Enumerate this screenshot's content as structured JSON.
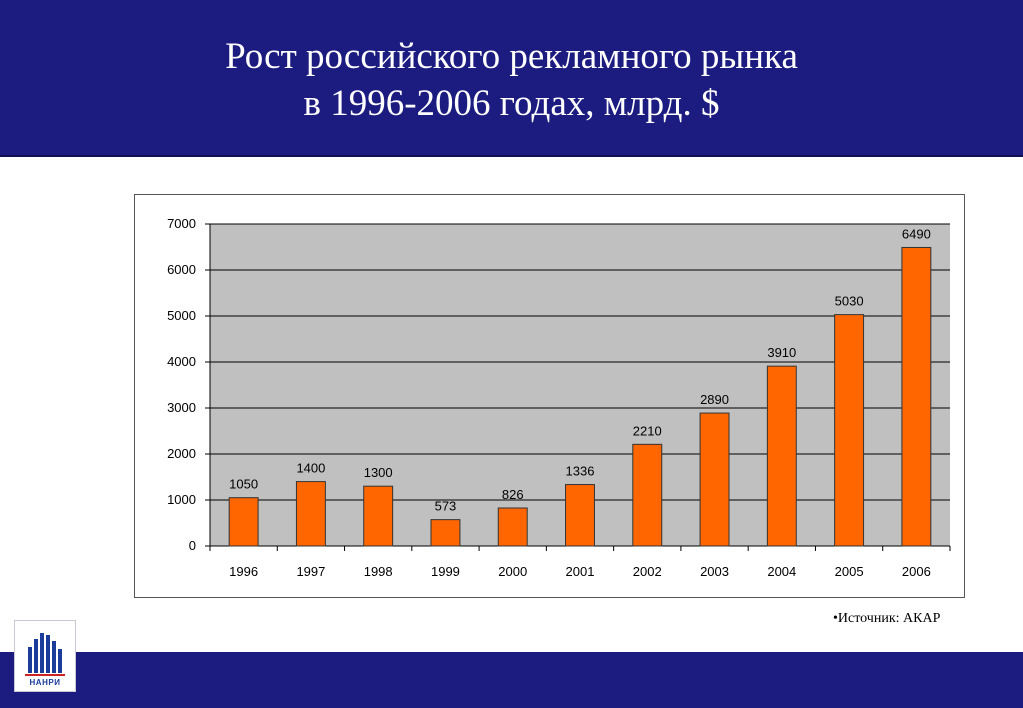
{
  "slide": {
    "title_line1": "Рост российского рекламного рынка",
    "title_line2": "в 1996-2006 годах, млрд. $",
    "source": "•Источник: АКАР",
    "logo_text": "НАНРИ"
  },
  "chart_data": {
    "type": "bar",
    "title": "",
    "xlabel": "",
    "ylabel": "",
    "categories": [
      "1996",
      "1997",
      "1998",
      "1999",
      "2000",
      "2001",
      "2002",
      "2003",
      "2004",
      "2005",
      "2006"
    ],
    "values": [
      1050,
      1400,
      1300,
      573,
      826,
      1336,
      2210,
      2890,
      3910,
      5030,
      6490
    ],
    "data_labels": [
      "1050",
      "1400",
      "1300",
      "573",
      "826",
      "1336",
      "2210",
      "2890",
      "3910",
      "5030",
      "6490"
    ],
    "ylim": [
      0,
      7000
    ],
    "yticks": [
      0,
      1000,
      2000,
      3000,
      4000,
      5000,
      6000,
      7000
    ],
    "ytick_labels": [
      "0",
      "1000",
      "2000",
      "3000",
      "4000",
      "5000",
      "6000",
      "7000"
    ],
    "grid": true,
    "legend": "none",
    "colors": {
      "bar_fill": "#ff6600",
      "bar_stroke": "#333333",
      "plot_background": "#c0c0c0",
      "gridline": "#000000"
    }
  }
}
